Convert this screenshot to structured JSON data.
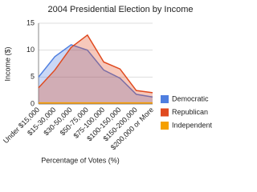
{
  "chart_data": {
    "type": "area",
    "title": "2004 Presidential Election by Income",
    "x_label": "Percentage of Votes (%)",
    "y_label": "Income ($)",
    "categories": [
      "Under $15,000",
      "$15-30,000",
      "$30-50,000",
      "$50-75,000",
      "$75-100,000",
      "$100-150,000",
      "$150-200,000",
      "$200,000 or More"
    ],
    "series": [
      {
        "name": "Democratic",
        "color": "#4f7fe0",
        "values": [
          5,
          8.8,
          11,
          10,
          6.3,
          4.8,
          1.8,
          1.3
        ]
      },
      {
        "name": "Republican",
        "color": "#e04a1f",
        "values": [
          3,
          6.3,
          10.5,
          12.8,
          7.8,
          6.5,
          2.5,
          2.1
        ]
      },
      {
        "name": "Independent",
        "color": "#f5a000",
        "values": [
          0.2,
          0.2,
          0.2,
          0.2,
          0.2,
          0.2,
          0.2,
          0.2
        ]
      }
    ],
    "ylim": [
      0,
      15
    ],
    "yticks": [
      0,
      5,
      10,
      15
    ],
    "grid": true,
    "legend": "right"
  }
}
